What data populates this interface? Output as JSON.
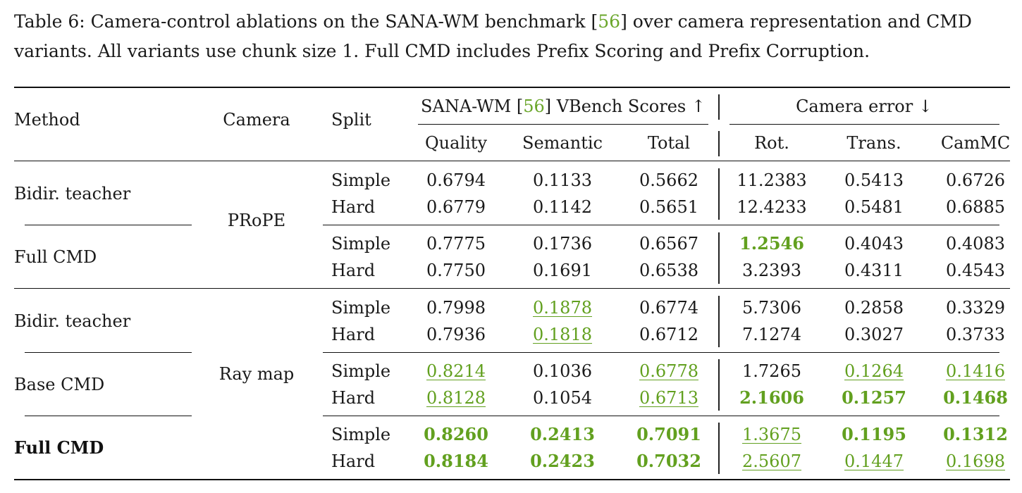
{
  "caption": {
    "prefix": "Table 6: Camera-control ablations on the SANA-WM benchmark [",
    "cite": "56",
    "suffix": "] over camera representation and CMD variants. All variants use chunk size 1. Full CMD includes Prefix Scoring and Prefix Corruption."
  },
  "header": {
    "method": "Method",
    "camera": "Camera",
    "split": "Split",
    "group1_prefix": "SANA-WM [",
    "group1_cite": "56",
    "group1_suffix": "] VBench Scores ↑",
    "group2": "Camera error ↓",
    "cols": [
      "Quality",
      "Semantic",
      "Total",
      "Rot.",
      "Trans.",
      "CamMC"
    ]
  },
  "cameras": [
    "PRoPE",
    "Ray map"
  ],
  "methods": [
    "Bidir. teacher",
    "Full CMD",
    "Bidir. teacher",
    "Base CMD",
    "Full CMD"
  ],
  "splits": [
    "Simple",
    "Hard"
  ],
  "rows": [
    {
      "cells": [
        {
          "v": "0.6794"
        },
        {
          "v": "0.1133"
        },
        {
          "v": "0.5662"
        },
        {
          "v": "11.2383"
        },
        {
          "v": "0.5413"
        },
        {
          "v": "0.6726"
        }
      ]
    },
    {
      "cells": [
        {
          "v": "0.6779"
        },
        {
          "v": "0.1142"
        },
        {
          "v": "0.5651"
        },
        {
          "v": "12.4233"
        },
        {
          "v": "0.5481"
        },
        {
          "v": "0.6885"
        }
      ]
    },
    {
      "cells": [
        {
          "v": "0.7775"
        },
        {
          "v": "0.1736"
        },
        {
          "v": "0.6567"
        },
        {
          "v": "1.2546",
          "s": "b"
        },
        {
          "v": "0.4043"
        },
        {
          "v": "0.4083"
        }
      ]
    },
    {
      "cells": [
        {
          "v": "0.7750"
        },
        {
          "v": "0.1691"
        },
        {
          "v": "0.6538"
        },
        {
          "v": "3.2393"
        },
        {
          "v": "0.4311"
        },
        {
          "v": "0.4543"
        }
      ]
    },
    {
      "cells": [
        {
          "v": "0.7998"
        },
        {
          "v": "0.1878",
          "s": "u"
        },
        {
          "v": "0.6774"
        },
        {
          "v": "5.7306"
        },
        {
          "v": "0.2858"
        },
        {
          "v": "0.3329"
        }
      ]
    },
    {
      "cells": [
        {
          "v": "0.7936"
        },
        {
          "v": "0.1818",
          "s": "u"
        },
        {
          "v": "0.6712"
        },
        {
          "v": "7.1274"
        },
        {
          "v": "0.3027"
        },
        {
          "v": "0.3733"
        }
      ]
    },
    {
      "cells": [
        {
          "v": "0.8214",
          "s": "u"
        },
        {
          "v": "0.1036"
        },
        {
          "v": "0.6778",
          "s": "u"
        },
        {
          "v": "1.7265"
        },
        {
          "v": "0.1264",
          "s": "u"
        },
        {
          "v": "0.1416",
          "s": "u"
        }
      ]
    },
    {
      "cells": [
        {
          "v": "0.8128",
          "s": "u"
        },
        {
          "v": "0.1054"
        },
        {
          "v": "0.6713",
          "s": "u"
        },
        {
          "v": "2.1606",
          "s": "b"
        },
        {
          "v": "0.1257",
          "s": "b"
        },
        {
          "v": "0.1468",
          "s": "b"
        }
      ]
    },
    {
      "cells": [
        {
          "v": "0.8260",
          "s": "b"
        },
        {
          "v": "0.2413",
          "s": "b"
        },
        {
          "v": "0.7091",
          "s": "b"
        },
        {
          "v": "1.3675",
          "s": "u"
        },
        {
          "v": "0.1195",
          "s": "b"
        },
        {
          "v": "0.1312",
          "s": "b"
        }
      ]
    },
    {
      "cells": [
        {
          "v": "0.8184",
          "s": "b"
        },
        {
          "v": "0.2423",
          "s": "b"
        },
        {
          "v": "0.7032",
          "s": "b"
        },
        {
          "v": "2.5607",
          "s": "u"
        },
        {
          "v": "0.1447",
          "s": "u"
        },
        {
          "v": "0.1698",
          "s": "u"
        }
      ]
    }
  ]
}
